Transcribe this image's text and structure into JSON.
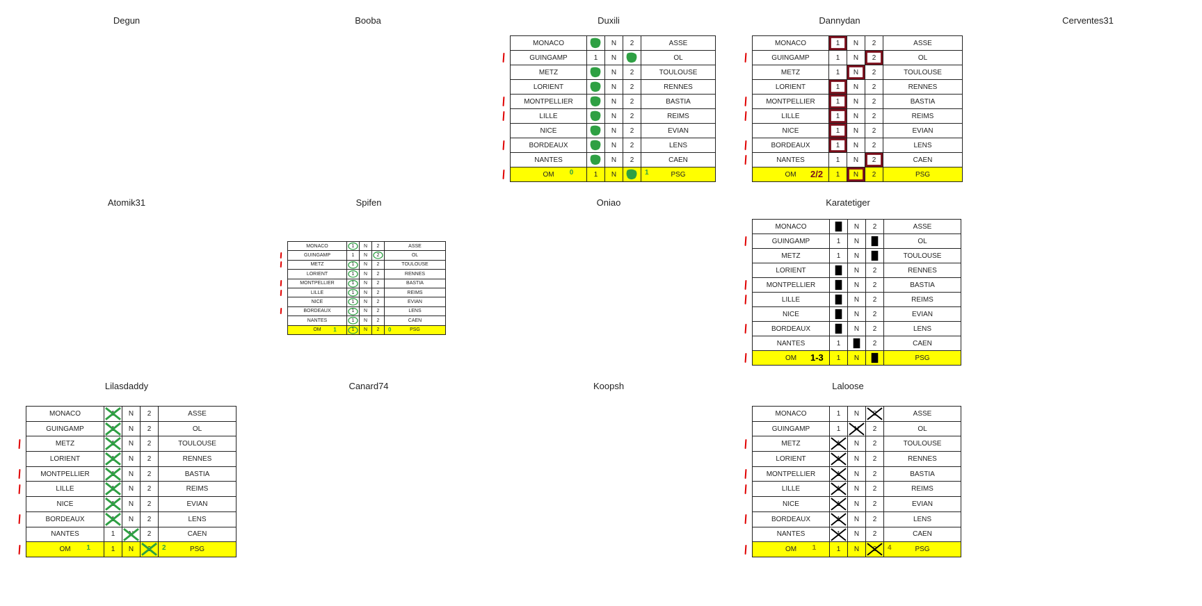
{
  "players": [
    "Degun",
    "Booba",
    "Duxili",
    "Dannydan",
    "Cerventes31",
    "Atomik31",
    "Spifen",
    "Oniao",
    "Karatetiger",
    "Lilasdaddy",
    "Canard74",
    "Koopsh",
    "Laloose"
  ],
  "matches": [
    {
      "home": "MONACO",
      "one": "1",
      "draw": "N",
      "two": "2",
      "away": "ASSE"
    },
    {
      "home": "GUINGAMP",
      "one": "1",
      "draw": "N",
      "two": "2",
      "away": "OL"
    },
    {
      "home": "METZ",
      "one": "1",
      "draw": "N",
      "two": "2",
      "away": "TOULOUSE"
    },
    {
      "home": "LORIENT",
      "one": "1",
      "draw": "N",
      "two": "2",
      "away": "RENNES"
    },
    {
      "home": "MONTPELLIER",
      "one": "1",
      "draw": "N",
      "two": "2",
      "away": "BASTIA"
    },
    {
      "home": "LILLE",
      "one": "1",
      "draw": "N",
      "two": "2",
      "away": "REIMS"
    },
    {
      "home": "NICE",
      "one": "1",
      "draw": "N",
      "two": "2",
      "away": "EVIAN"
    },
    {
      "home": "BORDEAUX",
      "one": "1",
      "draw": "N",
      "two": "2",
      "away": "LENS"
    },
    {
      "home": "NANTES",
      "one": "1",
      "draw": "N",
      "two": "2",
      "away": "CAEN"
    },
    {
      "home": "OM",
      "one": "1",
      "draw": "N",
      "two": "2",
      "away": "PSG"
    }
  ],
  "colors": {
    "highlight": "#ffff00",
    "green_mark": "#2ea043",
    "red_box": "#7a0f1c",
    "black_mark": "#000000",
    "red_tick": "#e00000"
  },
  "grids": {
    "duxili": {
      "picks": [
        "1",
        "2",
        "1",
        "1",
        "1",
        "1",
        "1",
        "1",
        "1",
        "2"
      ],
      "mark": "green-blob",
      "score_home": "0",
      "score_away": "1",
      "ticks": [
        1,
        4,
        5,
        7,
        9
      ]
    },
    "dannydan": {
      "picks": [
        "1",
        "2",
        "N",
        "1",
        "1",
        "1",
        "1",
        "1",
        "2",
        "N"
      ],
      "mark": "red-box",
      "score": "2/2",
      "ticks": [
        1,
        4,
        5,
        7,
        8
      ]
    },
    "spifen": {
      "picks": [
        "1",
        "2",
        "1",
        "1",
        "1",
        "1",
        "1",
        "1",
        "1",
        "1"
      ],
      "mark": "green-circle",
      "score_home": "1",
      "score_away": "0",
      "ticks": [
        1,
        2,
        4,
        5,
        7
      ]
    },
    "karatetiger": {
      "picks": [
        "1",
        "2",
        "2",
        "1",
        "1",
        "1",
        "1",
        "1",
        "N",
        "2"
      ],
      "mark": "black-rect",
      "score": "1-3",
      "ticks": [
        1,
        4,
        5,
        7,
        9
      ]
    },
    "lilasdaddy": {
      "picks": [
        "1",
        "1",
        "1",
        "1",
        "1",
        "1",
        "1",
        "1",
        "N",
        "2"
      ],
      "mark": "green-x",
      "score_home": "1",
      "score_away": "2",
      "ticks": [
        2,
        4,
        5,
        7,
        9
      ]
    },
    "laloose": {
      "picks": [
        "2",
        "N",
        "1",
        "1",
        "1",
        "1",
        "1",
        "1",
        "1",
        "2"
      ],
      "mark": "black-x",
      "score_home": "1",
      "score_away": "4",
      "ticks": [
        2,
        4,
        5,
        7,
        9
      ]
    }
  }
}
